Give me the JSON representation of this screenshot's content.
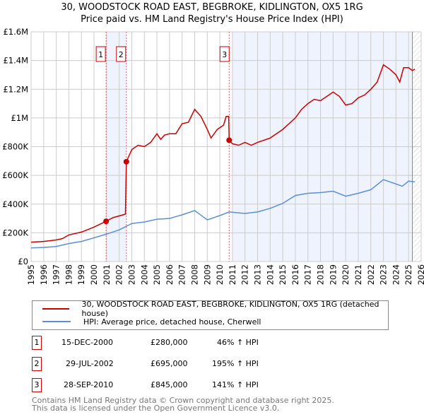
{
  "chart_data": {
    "type": "line",
    "title": "30, WOODSTOCK ROAD EAST, BEGBROKE, KIDLINGTON, OX5 1RG",
    "subtitle": "Price paid vs. HM Land Registry's House Price Index (HPI)",
    "xlim": [
      1995,
      2026
    ],
    "ylim": [
      0,
      1600000
    ],
    "yticks": [
      0,
      200000,
      400000,
      600000,
      800000,
      1000000,
      1200000,
      1400000,
      1600000
    ],
    "ytick_labels": [
      "£0",
      "£200K",
      "£400K",
      "£600K",
      "£800K",
      "£1M",
      "£1.2M",
      "£1.4M",
      "£1.6M"
    ],
    "xticks": [
      "1995",
      "1996",
      "1997",
      "1998",
      "1999",
      "2000",
      "2001",
      "2002",
      "2003",
      "2004",
      "2005",
      "2006",
      "2007",
      "2008",
      "2009",
      "2010",
      "2011",
      "2012",
      "2013",
      "2014",
      "2015",
      "2016",
      "2017",
      "2018",
      "2019",
      "2020",
      "2021",
      "2022",
      "2023",
      "2024",
      "2025",
      "2026"
    ],
    "grid": true,
    "shaded_ranges": [
      [
        2000.96,
        2002.57
      ],
      [
        2011.0,
        2025.3
      ]
    ],
    "forecast_hatch_from": 2025.3,
    "series": [
      {
        "name": "30, WOODSTOCK ROAD EAST, BEGBROKE, KIDLINGTON, OX5 1RG (detached house)",
        "color": "#cc0000",
        "x": [
          1995,
          1996,
          1997,
          1997.5,
          1998,
          1999,
          2000,
          2000.96,
          2001.5,
          2002.5,
          2002.57,
          2003,
          2003.5,
          2004,
          2004.5,
          2005,
          2005.3,
          2005.6,
          2006,
          2006.5,
          2007,
          2007.5,
          2008,
          2008.5,
          2009,
          2009.3,
          2009.8,
          2010.3,
          2010.5,
          2010.7,
          2010.74,
          2011,
          2011.5,
          2012,
          2012.5,
          2013,
          2014,
          2015,
          2016,
          2016.5,
          2017,
          2017.5,
          2018,
          2018.5,
          2019,
          2019.5,
          2020,
          2020.5,
          2021,
          2021.5,
          2022,
          2022.5,
          2023,
          2023.5,
          2024,
          2024.3,
          2024.6,
          2025,
          2025.3,
          2025.5
        ],
        "y": [
          135000,
          140000,
          150000,
          160000,
          185000,
          205000,
          240000,
          280000,
          305000,
          330000,
          695000,
          780000,
          810000,
          800000,
          830000,
          890000,
          850000,
          880000,
          890000,
          890000,
          960000,
          970000,
          1060000,
          1010000,
          920000,
          860000,
          920000,
          950000,
          1010000,
          1010000,
          845000,
          820000,
          810000,
          830000,
          810000,
          830000,
          860000,
          920000,
          1000000,
          1060000,
          1100000,
          1130000,
          1120000,
          1150000,
          1180000,
          1150000,
          1090000,
          1100000,
          1140000,
          1160000,
          1200000,
          1250000,
          1370000,
          1340000,
          1300000,
          1250000,
          1350000,
          1350000,
          1330000,
          1340000
        ]
      },
      {
        "name": "HPI: Average price, detached house, Cherwell",
        "color": "#5b8fd4",
        "x": [
          1995,
          1996,
          1997,
          1998,
          1999,
          2000,
          2000.96,
          2002,
          2003,
          2004,
          2005,
          2006,
          2007,
          2008,
          2009,
          2010,
          2010.74,
          2012,
          2013,
          2014,
          2015,
          2016,
          2017,
          2018,
          2019,
          2020,
          2021,
          2022,
          2023,
          2024,
          2024.5,
          2025,
          2025.5
        ],
        "y": [
          95000,
          98000,
          105000,
          125000,
          140000,
          165000,
          190000,
          220000,
          265000,
          275000,
          295000,
          300000,
          325000,
          355000,
          290000,
          320000,
          345000,
          335000,
          345000,
          370000,
          405000,
          460000,
          475000,
          480000,
          490000,
          455000,
          475000,
          500000,
          570000,
          540000,
          525000,
          560000,
          555000
        ]
      }
    ],
    "sales": [
      {
        "label": "1",
        "x": 2000.96,
        "y": 280000,
        "date": "15-DEC-2000",
        "price": "£280,000",
        "hpi": "46% ↑ HPI"
      },
      {
        "label": "2",
        "x": 2002.57,
        "y": 695000,
        "date": "29-JUL-2002",
        "price": "£695,000",
        "hpi": "195% ↑ HPI"
      },
      {
        "label": "3",
        "x": 2010.74,
        "y": 845000,
        "date": "28-SEP-2010",
        "price": "£845,000",
        "hpi": "141% ↑ HPI"
      }
    ]
  },
  "footer": {
    "line1": "Contains HM Land Registry data © Crown copyright and database right 2025.",
    "line2": "This data is licensed under the Open Government Licence v3.0."
  }
}
